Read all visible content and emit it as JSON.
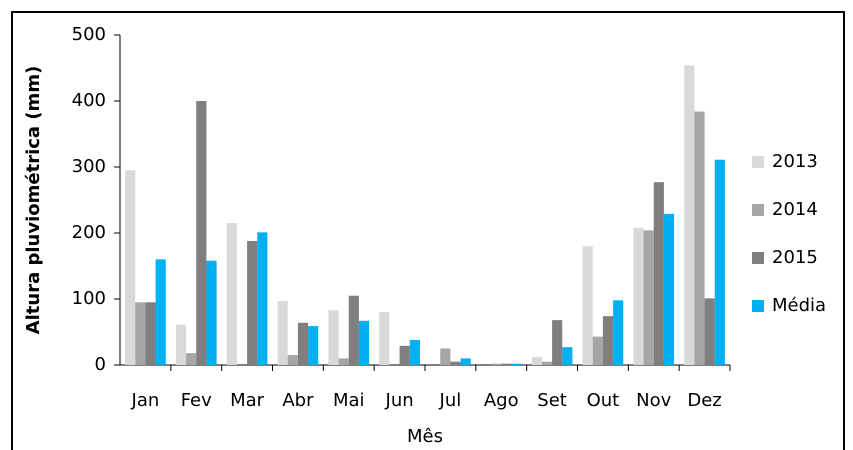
{
  "chart_data": {
    "type": "bar",
    "y_axis_label": "Altura pluviométrica (mm)",
    "x_axis_label": "Mês",
    "categories": [
      "Jan",
      "Fev",
      "Mar",
      "Abr",
      "Mai",
      "Jun",
      "Jul",
      "Ago",
      "Set",
      "Out",
      "Nov",
      "Dez"
    ],
    "series": [
      {
        "name": "2013",
        "color": "#d9d9d9",
        "values": [
          295,
          61,
          215,
          97,
          83,
          80,
          0,
          0,
          12,
          180,
          208,
          454
        ]
      },
      {
        "name": "2014",
        "color": "#a6a6a6",
        "values": [
          95,
          18,
          0,
          15,
          10,
          0,
          25,
          2,
          5,
          43,
          204,
          384
        ]
      },
      {
        "name": "2015",
        "color": "#7f7f7f",
        "values": [
          95,
          400,
          188,
          64,
          105,
          29,
          5,
          2,
          68,
          74,
          277,
          101
        ]
      },
      {
        "name": "Média",
        "color": "#00b0f0",
        "values": [
          160,
          158,
          201,
          59,
          67,
          38,
          10,
          2,
          27,
          98,
          229,
          311
        ]
      }
    ],
    "ylim": [
      0,
      500
    ],
    "yticks": [
      0,
      100,
      200,
      300,
      400,
      500
    ],
    "legend": "right"
  }
}
